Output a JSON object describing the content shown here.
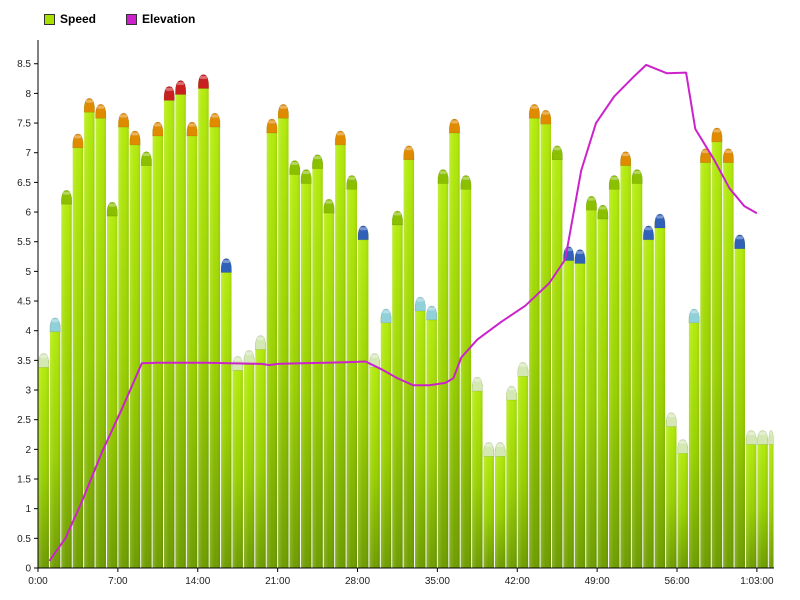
{
  "legend": {
    "speed_label": "Speed",
    "elevation_label": "Elevation"
  },
  "colors": {
    "speed": "#a8e000",
    "elevation": "#cc22cc",
    "cap_pale": "#d4e8b4",
    "cap_cyan": "#90d0d8",
    "cap_green": "#8ac000",
    "cap_orange": "#e08a00",
    "cap_red": "#c82020",
    "cap_blue": "#3060b8"
  },
  "chart_data": {
    "type": "bar",
    "xlabel": "",
    "ylabel": "",
    "ylim": [
      0,
      8.9
    ],
    "y_ticks": [
      "0",
      "0.5",
      "1",
      "1.5",
      "2",
      "2.5",
      "3",
      "3.5",
      "4",
      "4.5",
      "5",
      "5.5",
      "6",
      "6.5",
      "7",
      "7.5",
      "8",
      "8.5"
    ],
    "x_ticks": [
      "0:00",
      "7:00",
      "14:00",
      "21:00",
      "28:00",
      "35:00",
      "42:00",
      "49:00",
      "56:00",
      "1:03:00"
    ],
    "x_unit_minutes": [
      0,
      7,
      14,
      21,
      28,
      35,
      42,
      49,
      56,
      63
    ],
    "grid": false,
    "legend_position": "top-left",
    "series": [
      {
        "name": "Speed",
        "type": "bar",
        "bars": [
          {
            "start": 0.0,
            "end": 1.0,
            "value": 3.5,
            "cap": "pale"
          },
          {
            "start": 1.0,
            "end": 2.0,
            "value": 4.1,
            "cap": "cyan"
          },
          {
            "start": 2.0,
            "end": 3.0,
            "value": 6.25,
            "cap": "green"
          },
          {
            "start": 3.0,
            "end": 4.0,
            "value": 7.2,
            "cap": "orange"
          },
          {
            "start": 4.0,
            "end": 5.0,
            "value": 7.8,
            "cap": "orange"
          },
          {
            "start": 5.0,
            "end": 6.0,
            "value": 7.7,
            "cap": "orange"
          },
          {
            "start": 6.0,
            "end": 7.0,
            "value": 6.05,
            "cap": "green"
          },
          {
            "start": 7.0,
            "end": 8.0,
            "value": 7.55,
            "cap": "orange"
          },
          {
            "start": 8.0,
            "end": 9.0,
            "value": 7.25,
            "cap": "orange"
          },
          {
            "start": 9.0,
            "end": 10.0,
            "value": 6.9,
            "cap": "green"
          },
          {
            "start": 10.0,
            "end": 11.0,
            "value": 7.4,
            "cap": "orange"
          },
          {
            "start": 11.0,
            "end": 12.0,
            "value": 8.0,
            "cap": "red"
          },
          {
            "start": 12.0,
            "end": 13.0,
            "value": 8.1,
            "cap": "red"
          },
          {
            "start": 13.0,
            "end": 14.0,
            "value": 7.4,
            "cap": "orange"
          },
          {
            "start": 14.0,
            "end": 15.0,
            "value": 8.2,
            "cap": "red"
          },
          {
            "start": 15.0,
            "end": 16.0,
            "value": 7.55,
            "cap": "orange"
          },
          {
            "start": 16.0,
            "end": 17.0,
            "value": 5.1,
            "cap": "blue"
          },
          {
            "start": 17.0,
            "end": 18.0,
            "value": 3.45,
            "cap": "pale"
          },
          {
            "start": 18.0,
            "end": 19.0,
            "value": 3.55,
            "cap": "pale"
          },
          {
            "start": 19.0,
            "end": 20.0,
            "value": 3.8,
            "cap": "pale"
          },
          {
            "start": 20.0,
            "end": 21.0,
            "value": 7.45,
            "cap": "orange"
          },
          {
            "start": 21.0,
            "end": 22.0,
            "value": 7.7,
            "cap": "orange"
          },
          {
            "start": 22.0,
            "end": 23.0,
            "value": 6.75,
            "cap": "green"
          },
          {
            "start": 23.0,
            "end": 24.0,
            "value": 6.6,
            "cap": "green"
          },
          {
            "start": 24.0,
            "end": 25.0,
            "value": 6.85,
            "cap": "green"
          },
          {
            "start": 25.0,
            "end": 26.0,
            "value": 6.1,
            "cap": "green"
          },
          {
            "start": 26.0,
            "end": 27.0,
            "value": 7.25,
            "cap": "orange"
          },
          {
            "start": 27.0,
            "end": 28.0,
            "value": 6.5,
            "cap": "green"
          },
          {
            "start": 28.0,
            "end": 29.0,
            "value": 5.65,
            "cap": "blue"
          },
          {
            "start": 29.0,
            "end": 30.0,
            "value": 3.5,
            "cap": "pale"
          },
          {
            "start": 30.0,
            "end": 31.0,
            "value": 4.25,
            "cap": "cyan"
          },
          {
            "start": 31.0,
            "end": 32.0,
            "value": 5.9,
            "cap": "green"
          },
          {
            "start": 32.0,
            "end": 33.0,
            "value": 7.0,
            "cap": "orange"
          },
          {
            "start": 33.0,
            "end": 34.0,
            "value": 4.45,
            "cap": "cyan"
          },
          {
            "start": 34.0,
            "end": 35.0,
            "value": 4.3,
            "cap": "cyan"
          },
          {
            "start": 35.0,
            "end": 36.0,
            "value": 6.6,
            "cap": "green"
          },
          {
            "start": 36.0,
            "end": 37.0,
            "value": 7.45,
            "cap": "orange"
          },
          {
            "start": 37.0,
            "end": 38.0,
            "value": 6.5,
            "cap": "green"
          },
          {
            "start": 38.0,
            "end": 39.0,
            "value": 3.1,
            "cap": "pale"
          },
          {
            "start": 39.0,
            "end": 40.0,
            "value": 2.0,
            "cap": "pale"
          },
          {
            "start": 40.0,
            "end": 41.0,
            "value": 2.0,
            "cap": "pale"
          },
          {
            "start": 41.0,
            "end": 42.0,
            "value": 2.95,
            "cap": "pale"
          },
          {
            "start": 42.0,
            "end": 43.0,
            "value": 3.35,
            "cap": "pale"
          },
          {
            "start": 43.0,
            "end": 44.0,
            "value": 7.7,
            "cap": "orange"
          },
          {
            "start": 44.0,
            "end": 45.0,
            "value": 7.6,
            "cap": "orange"
          },
          {
            "start": 45.0,
            "end": 46.0,
            "value": 7.0,
            "cap": "green"
          },
          {
            "start": 46.0,
            "end": 47.0,
            "value": 5.3,
            "cap": "blue"
          },
          {
            "start": 47.0,
            "end": 48.0,
            "value": 5.25,
            "cap": "blue"
          },
          {
            "start": 48.0,
            "end": 49.0,
            "value": 6.15,
            "cap": "green"
          },
          {
            "start": 49.0,
            "end": 50.0,
            "value": 6.0,
            "cap": "green"
          },
          {
            "start": 50.0,
            "end": 51.0,
            "value": 6.5,
            "cap": "green"
          },
          {
            "start": 51.0,
            "end": 52.0,
            "value": 6.9,
            "cap": "orange"
          },
          {
            "start": 52.0,
            "end": 53.0,
            "value": 6.6,
            "cap": "green"
          },
          {
            "start": 53.0,
            "end": 54.0,
            "value": 5.65,
            "cap": "blue"
          },
          {
            "start": 54.0,
            "end": 55.0,
            "value": 5.85,
            "cap": "blue"
          },
          {
            "start": 55.0,
            "end": 56.0,
            "value": 2.5,
            "cap": "pale"
          },
          {
            "start": 56.0,
            "end": 57.0,
            "value": 2.05,
            "cap": "pale"
          },
          {
            "start": 57.0,
            "end": 58.0,
            "value": 4.25,
            "cap": "cyan"
          },
          {
            "start": 58.0,
            "end": 59.0,
            "value": 6.95,
            "cap": "orange"
          },
          {
            "start": 59.0,
            "end": 60.0,
            "value": 7.3,
            "cap": "orange"
          },
          {
            "start": 60.0,
            "end": 61.0,
            "value": 6.95,
            "cap": "orange"
          },
          {
            "start": 61.0,
            "end": 62.0,
            "value": 5.5,
            "cap": "blue"
          },
          {
            "start": 62.0,
            "end": 63.0,
            "value": 2.2,
            "cap": "pale"
          },
          {
            "start": 63.0,
            "end": 64.0,
            "value": 2.2,
            "cap": "pale"
          },
          {
            "start": 64.0,
            "end": 64.5,
            "value": 2.2,
            "cap": "pale"
          }
        ]
      },
      {
        "name": "Elevation",
        "type": "line",
        "x": [
          1.0,
          2.4,
          3.8,
          5.6,
          7.4,
          9.1,
          10.5,
          12.6,
          14.7,
          16.8,
          19.6,
          20.3,
          21.0,
          23.1,
          25.2,
          27.3,
          28.7,
          30.1,
          31.5,
          32.9,
          34.3,
          35.7,
          36.4,
          37.1,
          38.5,
          40.6,
          42.7,
          44.8,
          46.2,
          47.6,
          48.9,
          50.5,
          52.2,
          53.3,
          55.1,
          56.8,
          57.6,
          59.2,
          60.6,
          61.9,
          63.0
        ],
        "y": [
          0.12,
          0.5,
          1.1,
          1.95,
          2.7,
          3.45,
          3.46,
          3.46,
          3.46,
          3.45,
          3.44,
          3.42,
          3.44,
          3.45,
          3.46,
          3.47,
          3.48,
          3.35,
          3.2,
          3.08,
          3.08,
          3.12,
          3.2,
          3.55,
          3.85,
          4.15,
          4.42,
          4.8,
          5.2,
          6.7,
          7.5,
          7.95,
          8.28,
          8.48,
          8.34,
          8.35,
          7.4,
          6.9,
          6.4,
          6.1,
          5.98
        ]
      }
    ]
  }
}
